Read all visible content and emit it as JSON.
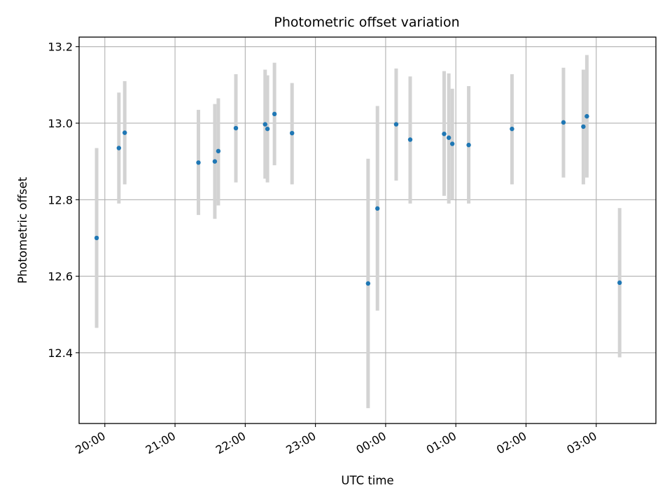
{
  "chart_data": {
    "type": "scatter",
    "title": "Photometric offset variation",
    "xlabel": "UTC time",
    "ylabel": "Photometric offset",
    "x_tick_labels": [
      "20:00",
      "21:00",
      "22:00",
      "23:00",
      "00:00",
      "01:00",
      "02:00",
      "03:00"
    ],
    "y_tick_labels": [
      "12.4",
      "12.6",
      "12.8",
      "13.0",
      "13.2"
    ],
    "y_ticks": [
      12.4,
      12.6,
      12.8,
      13.0,
      13.2
    ],
    "xlim": [
      "19:38",
      "03:51"
    ],
    "ylim": [
      12.215,
      13.225
    ],
    "grid": true,
    "point_color": "#1f77b4",
    "errorbar_color": "#d3d3d3",
    "series": [
      {
        "points": [
          {
            "t": "19:53",
            "y": 12.7,
            "ylo": 12.465,
            "yhi": 12.935
          },
          {
            "t": "20:12",
            "y": 12.935,
            "ylo": 12.79,
            "yhi": 13.08
          },
          {
            "t": "20:17",
            "y": 12.975,
            "ylo": 12.84,
            "yhi": 13.11
          },
          {
            "t": "21:20",
            "y": 12.897,
            "ylo": 12.76,
            "yhi": 13.035
          },
          {
            "t": "21:34",
            "y": 12.9,
            "ylo": 12.75,
            "yhi": 13.05
          },
          {
            "t": "21:37",
            "y": 12.927,
            "ylo": 12.785,
            "yhi": 13.065
          },
          {
            "t": "21:52",
            "y": 12.987,
            "ylo": 12.845,
            "yhi": 13.128
          },
          {
            "t": "22:17",
            "y": 12.997,
            "ylo": 12.855,
            "yhi": 13.14
          },
          {
            "t": "22:19",
            "y": 12.985,
            "ylo": 12.845,
            "yhi": 13.125
          },
          {
            "t": "22:25",
            "y": 13.024,
            "ylo": 12.89,
            "yhi": 13.158
          },
          {
            "t": "22:40",
            "y": 12.974,
            "ylo": 12.84,
            "yhi": 13.105
          },
          {
            "t": "23:45",
            "y": 12.581,
            "ylo": 12.255,
            "yhi": 12.907
          },
          {
            "t": "23:53",
            "y": 12.777,
            "ylo": 12.51,
            "yhi": 13.045
          },
          {
            "t": "00:09",
            "y": 12.997,
            "ylo": 12.85,
            "yhi": 13.143
          },
          {
            "t": "00:21",
            "y": 12.957,
            "ylo": 12.79,
            "yhi": 13.122
          },
          {
            "t": "00:50",
            "y": 12.972,
            "ylo": 12.81,
            "yhi": 13.136
          },
          {
            "t": "00:54",
            "y": 12.962,
            "ylo": 12.79,
            "yhi": 13.13
          },
          {
            "t": "00:57",
            "y": 12.946,
            "ylo": 12.8,
            "yhi": 13.09
          },
          {
            "t": "01:11",
            "y": 12.943,
            "ylo": 12.79,
            "yhi": 13.097
          },
          {
            "t": "01:48",
            "y": 12.985,
            "ylo": 12.84,
            "yhi": 13.128
          },
          {
            "t": "02:32",
            "y": 13.002,
            "ylo": 12.858,
            "yhi": 13.145
          },
          {
            "t": "02:49",
            "y": 12.991,
            "ylo": 12.84,
            "yhi": 13.14
          },
          {
            "t": "02:52",
            "y": 13.018,
            "ylo": 12.858,
            "yhi": 13.178
          },
          {
            "t": "03:20",
            "y": 12.583,
            "ylo": 12.388,
            "yhi": 12.778
          }
        ]
      }
    ]
  }
}
